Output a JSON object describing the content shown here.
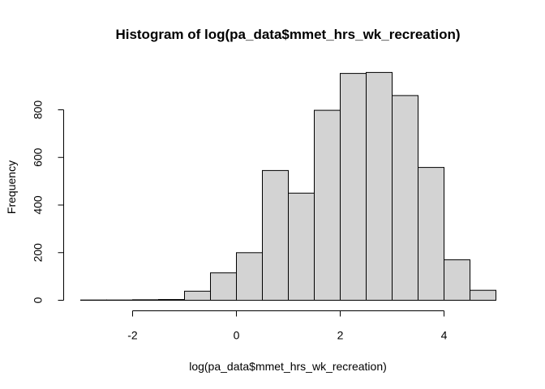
{
  "chart_data": {
    "type": "bar",
    "title": "Histogram of log(pa_data$mmet_hrs_wk_recreation)",
    "xlabel": "log(pa_data$mmet_hrs_wk_recreation)",
    "ylabel": "Frequency",
    "bin_edges": [
      -3.0,
      -2.5,
      -2.0,
      -1.5,
      -1.0,
      -0.5,
      0.0,
      0.5,
      1.0,
      1.5,
      2.0,
      2.5,
      3.0,
      3.5,
      4.0,
      4.5,
      5.0
    ],
    "values": [
      1,
      1,
      2,
      3,
      38,
      115,
      200,
      545,
      450,
      798,
      953,
      957,
      860,
      558,
      170,
      42
    ],
    "xlim": [
      -3.0,
      5.0
    ],
    "ylim": [
      0,
      960
    ],
    "xticks": [
      -2,
      0,
      2,
      4
    ],
    "yticks": [
      0,
      200,
      400,
      600,
      800
    ],
    "grid": false,
    "bar_color": "#d3d3d3",
    "edge_color": "#000000"
  }
}
